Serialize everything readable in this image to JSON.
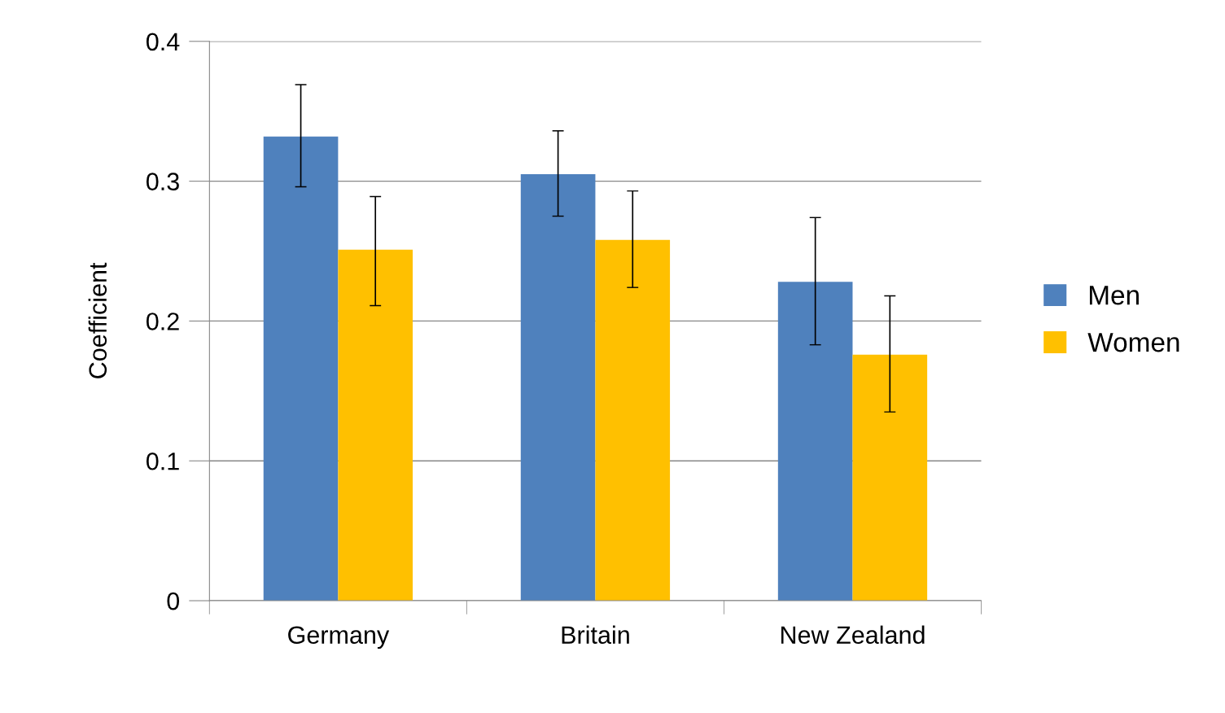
{
  "chart_data": {
    "type": "bar",
    "ylabel": "Coefficient",
    "categories": [
      "Germany",
      "Britain",
      "New Zealand"
    ],
    "series": [
      {
        "name": "Men",
        "color": "#4f81bd",
        "values": [
          0.332,
          0.305,
          0.228
        ],
        "errors": [
          [
            0.296,
            0.369
          ],
          [
            0.275,
            0.336
          ],
          [
            0.183,
            0.274
          ]
        ]
      },
      {
        "name": "Women",
        "color": "#ffc000",
        "values": [
          0.251,
          0.258,
          0.176
        ],
        "errors": [
          [
            0.211,
            0.289
          ],
          [
            0.224,
            0.293
          ],
          [
            0.135,
            0.218
          ]
        ]
      }
    ],
    "ylim": [
      0,
      0.4
    ],
    "yticks": [
      {
        "value": 0,
        "label": "0"
      },
      0.1,
      0.2,
      0.3,
      0.4
    ],
    "grid": "y",
    "legend": "right"
  }
}
